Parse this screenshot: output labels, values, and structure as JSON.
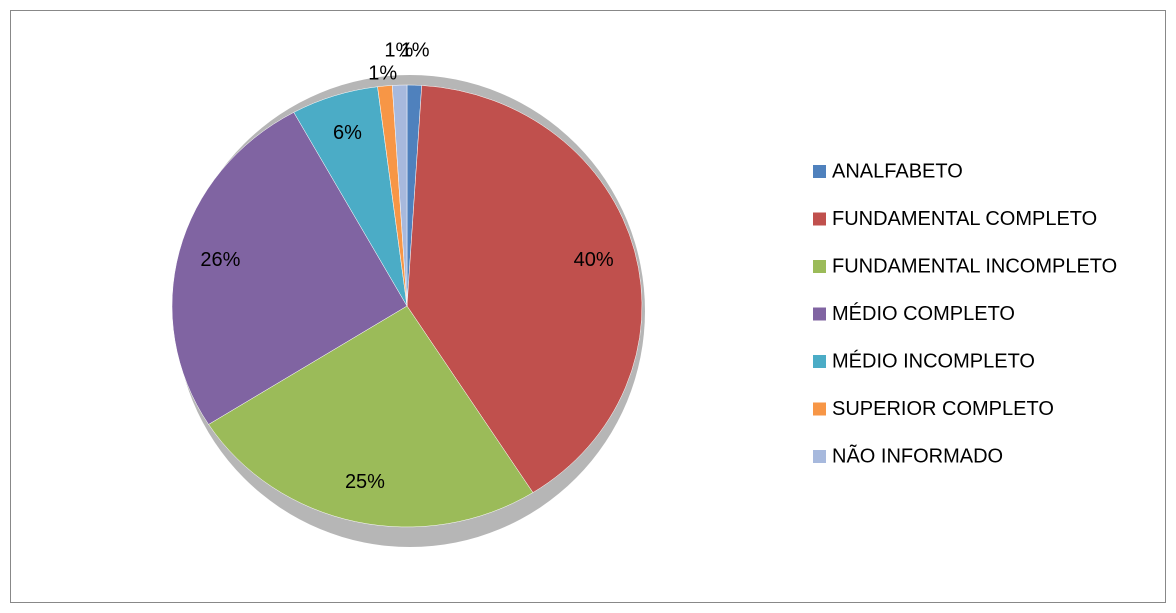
{
  "chart_data": {
    "type": "pie",
    "categories": [
      "ANALFABETO",
      "FUNDAMENTAL COMPLETO",
      "FUNDAMENTAL INCOMPLETO",
      "MÉDIO COMPLETO",
      "MÉDIO INCOMPLETO",
      "SUPERIOR COMPLETO",
      "NÃO INFORMADO"
    ],
    "values": [
      1,
      40,
      25,
      26,
      6,
      1,
      1
    ],
    "value_labels": [
      "1%",
      "40%",
      "25%",
      "26%",
      "6%",
      "1%",
      "1%"
    ],
    "colors": [
      "#4f81bd",
      "#c0504d",
      "#9bbb59",
      "#8064a2",
      "#4bacc6",
      "#f79646",
      "#a7b9dd"
    ],
    "legend": "right"
  }
}
